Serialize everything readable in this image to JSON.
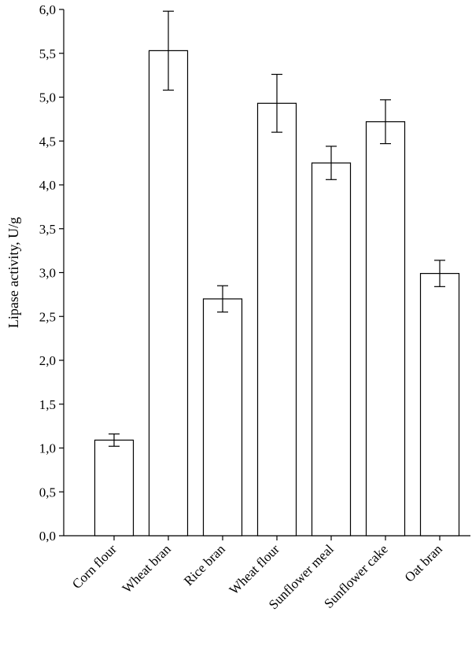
{
  "chart_data": {
    "type": "bar",
    "title": "",
    "xlabel": "",
    "ylabel": "Lipase activity, U/g",
    "ylim": [
      0,
      6
    ],
    "yticks": [
      "0,0",
      "0,5",
      "1,0",
      "1,5",
      "2,0",
      "2,5",
      "3,0",
      "3,5",
      "4,0",
      "4,5",
      "5,0",
      "5,5",
      "6,0"
    ],
    "categories": [
      "Corn flour",
      "Wheat bran",
      "Rice bran",
      "Wheat flour",
      "Sunflower meal",
      "Sunflower cake",
      "Oat bran"
    ],
    "values": [
      1.09,
      5.53,
      2.7,
      4.93,
      4.25,
      4.72,
      2.99
    ],
    "errors": [
      0.07,
      0.45,
      0.15,
      0.33,
      0.19,
      0.25,
      0.15
    ],
    "bar_fill": "#ffffff",
    "bar_stroke": "#000000",
    "grid": false,
    "legend": "none"
  }
}
